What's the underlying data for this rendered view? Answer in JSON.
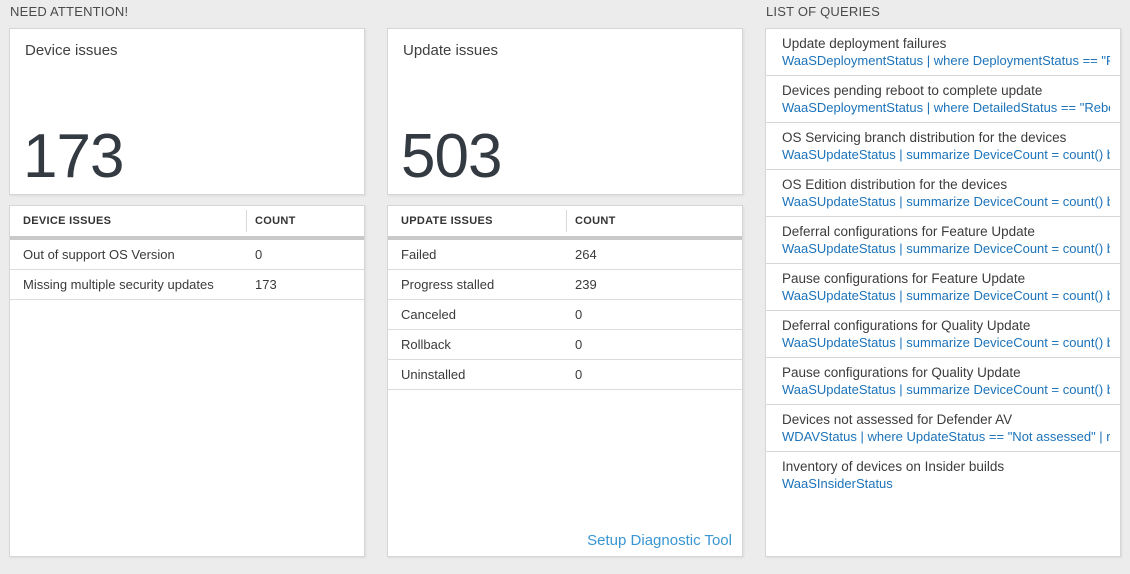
{
  "sections": {
    "need_attention": "NEED ATTENTION!",
    "queries": "LIST OF QUERIES"
  },
  "device_card": {
    "title": "Device issues",
    "count": "173"
  },
  "device_table": {
    "issue_header": "DEVICE ISSUES",
    "count_header": "COUNT",
    "rows": [
      {
        "label": "Out of support OS Version",
        "count": "0"
      },
      {
        "label": "Missing multiple security updates",
        "count": "173"
      }
    ]
  },
  "update_card": {
    "title": "Update issues",
    "count": "503"
  },
  "update_table": {
    "issue_header": "UPDATE ISSUES",
    "count_header": "COUNT",
    "rows": [
      {
        "label": "Failed",
        "count": "264"
      },
      {
        "label": "Progress stalled",
        "count": "239"
      },
      {
        "label": "Canceled",
        "count": "0"
      },
      {
        "label": "Rollback",
        "count": "0"
      },
      {
        "label": "Uninstalled",
        "count": "0"
      }
    ],
    "footer_link": "Setup Diagnostic Tool"
  },
  "query_list": {
    "items": [
      {
        "title": "Update deployment failures",
        "query": "WaaSDeploymentStatus | where DeploymentStatus == \"Failed\" |..."
      },
      {
        "title": "Devices pending reboot to complete update",
        "query": "WaaSDeploymentStatus | where DetailedStatus == \"Reboot pend..."
      },
      {
        "title": "OS Servicing branch distribution for the devices",
        "query": "WaaSUpdateStatus | summarize DeviceCount = count() by OSSer..."
      },
      {
        "title": "OS Edition distribution for the devices",
        "query": "WaaSUpdateStatus | summarize DeviceCount = count() by OSEdit..."
      },
      {
        "title": "Deferral configurations for Feature Update",
        "query": "WaaSUpdateStatus | summarize DeviceCount = count() by Featur..."
      },
      {
        "title": "Pause configurations for Feature Update",
        "query": "WaaSUpdateStatus | summarize DeviceCount = count() by Featur..."
      },
      {
        "title": "Deferral configurations for Quality Update",
        "query": "WaaSUpdateStatus | summarize DeviceCount = count() by Qualit..."
      },
      {
        "title": "Pause configurations for Quality Update",
        "query": "WaaSUpdateStatus | summarize DeviceCount = count() by Qualit..."
      },
      {
        "title": "Devices not assessed for Defender AV",
        "query": "WDAVStatus | where UpdateStatus == \"Not assessed\" | render ta..."
      },
      {
        "title": "Inventory of devices on Insider builds",
        "query": "WaaSInsiderStatus"
      }
    ]
  },
  "colors": {
    "page_background": "#ececec",
    "panel_background": "#ffffff",
    "panel_border": "#d6d6d6",
    "big_number": "#333a42",
    "query_link_blue": "#1c73ba",
    "setup_link_blue": "#3a96d2",
    "thick_divider": "#c9c9c9"
  }
}
